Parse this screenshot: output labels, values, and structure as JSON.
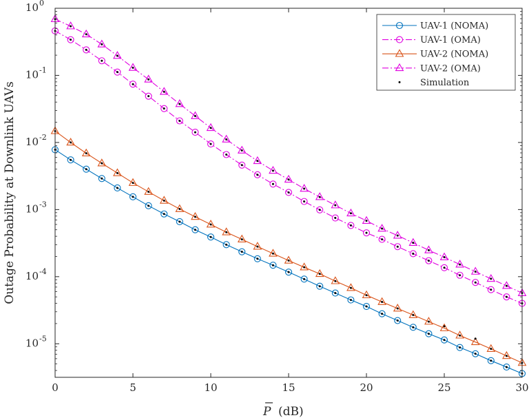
{
  "chart_data": {
    "type": "line",
    "title": "",
    "xlabel": {
      "symbol": "P",
      "unit": "(dB)"
    },
    "ylabel": "Outage Probability at Downlink UAVs",
    "xlim": [
      0,
      30
    ],
    "ylim_log10": [
      -5.5,
      0
    ],
    "y_scale": "log",
    "x_ticks": [
      0,
      5,
      10,
      15,
      20,
      25,
      30
    ],
    "x_tick_labels": [
      "0",
      "5",
      "10",
      "15",
      "20",
      "25",
      "30"
    ],
    "y_ticks": [
      {
        "base": "10",
        "exp": "0",
        "value": 1
      },
      {
        "base": "10",
        "exp": "-1",
        "value": 0.1
      },
      {
        "base": "10",
        "exp": "-2",
        "value": 0.01
      },
      {
        "base": "10",
        "exp": "-3",
        "value": 0.001
      },
      {
        "base": "10",
        "exp": "-4",
        "value": 0.0001
      },
      {
        "base": "10",
        "exp": "-5",
        "value": 1e-05
      }
    ],
    "grid": false,
    "legend_position": "top-right",
    "series": [
      {
        "name": "UAV-1 (NOMA)",
        "color": "#0072bd",
        "marker": "circle",
        "style": "solid",
        "x": [
          0,
          1,
          2,
          3,
          4,
          5,
          6,
          7,
          8,
          9,
          10,
          11,
          12,
          13,
          14,
          15,
          16,
          17,
          18,
          19,
          20,
          21,
          22,
          23,
          24,
          25,
          26,
          27,
          28,
          29,
          30
        ],
        "y": [
          0.0078,
          0.0055,
          0.004,
          0.0029,
          0.0021,
          0.00155,
          0.00114,
          0.00086,
          0.00066,
          0.0005,
          0.00039,
          0.0003,
          0.000235,
          0.000185,
          0.000148,
          0.000117,
          9.2e-05,
          7.2e-05,
          5.7e-05,
          4.5e-05,
          3.6e-05,
          2.8e-05,
          2.22e-05,
          1.76e-05,
          1.41e-05,
          1.14e-05,
          8.8e-06,
          7.1e-06,
          5.6e-06,
          4.5e-06,
          3.6e-06
        ]
      },
      {
        "name": "UAV-1 (OMA)",
        "color": "#e000e0",
        "marker": "circle",
        "style": "dashdot",
        "x": [
          0,
          1,
          2,
          3,
          4,
          5,
          6,
          7,
          8,
          9,
          10,
          11,
          12,
          13,
          14,
          15,
          16,
          17,
          18,
          19,
          20,
          21,
          22,
          23,
          24,
          25,
          26,
          27,
          28,
          29,
          30
        ],
        "y": [
          0.46,
          0.34,
          0.24,
          0.165,
          0.112,
          0.074,
          0.049,
          0.032,
          0.021,
          0.0142,
          0.0095,
          0.0066,
          0.0046,
          0.0033,
          0.0024,
          0.0018,
          0.00132,
          0.00099,
          0.00075,
          0.00058,
          0.00045,
          0.00036,
          0.00028,
          0.00022,
          0.000173,
          0.000136,
          0.000105,
          8.2e-05,
          6.4e-05,
          5e-05,
          4e-05
        ]
      },
      {
        "name": "UAV-2 (NOMA)",
        "color": "#d95319",
        "marker": "triangle",
        "style": "solid",
        "x": [
          0,
          1,
          2,
          3,
          4,
          5,
          6,
          7,
          8,
          9,
          10,
          11,
          12,
          13,
          14,
          15,
          16,
          17,
          18,
          19,
          20,
          21,
          22,
          23,
          24,
          25,
          26,
          27,
          28,
          29,
          30
        ],
        "y": [
          0.0148,
          0.01,
          0.0069,
          0.0049,
          0.0035,
          0.0025,
          0.00184,
          0.00136,
          0.00102,
          0.00078,
          0.0006,
          0.00046,
          0.00036,
          0.000281,
          0.000221,
          0.000174,
          0.000138,
          0.00011,
          8.6e-05,
          6.8e-05,
          5.3e-05,
          4.2e-05,
          3.36e-05,
          2.68e-05,
          2.14e-05,
          1.71e-05,
          1.33e-05,
          1.06e-05,
          8.4e-06,
          6.6e-06,
          5.2e-06
        ]
      },
      {
        "name": "UAV-2 (OMA)",
        "color": "#e000e0",
        "marker": "triangle",
        "style": "dashdot",
        "x": [
          0,
          1,
          2,
          3,
          4,
          5,
          6,
          7,
          8,
          9,
          10,
          11,
          12,
          13,
          14,
          15,
          16,
          17,
          18,
          19,
          20,
          21,
          22,
          23,
          24,
          25,
          26,
          27,
          28,
          29,
          30
        ],
        "y": [
          0.69,
          0.54,
          0.41,
          0.29,
          0.196,
          0.13,
          0.087,
          0.057,
          0.0375,
          0.0248,
          0.0165,
          0.0111,
          0.0076,
          0.0053,
          0.0038,
          0.0028,
          0.00205,
          0.00154,
          0.00116,
          0.00088,
          0.00068,
          0.00052,
          0.00041,
          0.00032,
          0.000248,
          0.000195,
          0.000152,
          0.000119,
          9.3e-05,
          7.3e-05,
          5.7e-05
        ]
      }
    ],
    "simulation": {
      "name": "Simulation",
      "color": "#000000",
      "marker": "dot",
      "x": [
        0,
        1,
        2,
        3,
        4,
        5,
        6,
        7,
        8,
        9,
        10,
        11,
        12,
        13,
        14,
        15,
        16,
        17,
        18,
        19,
        20,
        21,
        22,
        23,
        24,
        25,
        26,
        27,
        28,
        29,
        30
      ],
      "series_ref": [
        0,
        1,
        2,
        3
      ],
      "y_overrides": {
        "2": {
          "25": 1.82e-05,
          "27": 1.19e-05
        }
      }
    },
    "legend": [
      "UAV-1 (NOMA)",
      "UAV-1 (OMA)",
      "UAV-2 (NOMA)",
      "UAV-2 (OMA)",
      "Simulation"
    ]
  }
}
